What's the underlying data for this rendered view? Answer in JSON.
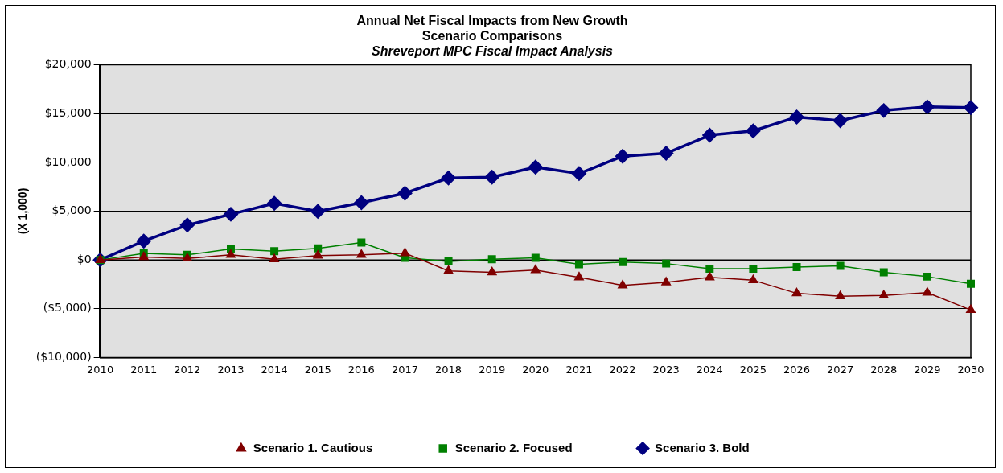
{
  "chart_data": {
    "type": "line",
    "title": [
      "Annual Net Fiscal Impacts from New Growth",
      "Scenario Comparisons"
    ],
    "subtitle": "Shreveport MPC Fiscal Impact Analysis",
    "ylabel": "(X 1,000)",
    "categories": [
      "2010",
      "2011",
      "2012",
      "2013",
      "2014",
      "2015",
      "2016",
      "2017",
      "2018",
      "2019",
      "2020",
      "2021",
      "2022",
      "2023",
      "2024",
      "2025",
      "2026",
      "2027",
      "2028",
      "2029",
      "2030"
    ],
    "series": [
      {
        "name": "Scenario 1. Cautious",
        "color": "#800000",
        "marker": "triangle",
        "values": [
          0,
          300,
          150,
          520,
          70,
          450,
          520,
          700,
          -1120,
          -1260,
          -1040,
          -1780,
          -2600,
          -2300,
          -1780,
          -2080,
          -3420,
          -3720,
          -3640,
          -3350,
          -5130
        ]
      },
      {
        "name": "Scenario 2. Focused",
        "color": "#008000",
        "marker": "square",
        "values": [
          0,
          670,
          520,
          1120,
          890,
          1190,
          1780,
          220,
          -150,
          70,
          220,
          -450,
          -220,
          -370,
          -890,
          -890,
          -740,
          -600,
          -1260,
          -1710,
          -2450
        ]
      },
      {
        "name": "Scenario 3. Bold",
        "color": "#000080",
        "marker": "diamond",
        "values": [
          0,
          1930,
          3570,
          4680,
          5800,
          4980,
          5870,
          6840,
          8400,
          8480,
          9520,
          8850,
          10630,
          10930,
          12790,
          13230,
          14650,
          14280,
          15320,
          15690,
          15610
        ]
      }
    ],
    "ylim": [
      -10000,
      20000
    ],
    "yticks": [
      {
        "value": -10000,
        "label": "($10,000)"
      },
      {
        "value": -5000,
        "label": "($5,000)"
      },
      {
        "value": 0,
        "label": "$0"
      },
      {
        "value": 5000,
        "label": "$5,000"
      },
      {
        "value": 10000,
        "label": "$10,000"
      },
      {
        "value": 15000,
        "label": "$15,000"
      },
      {
        "value": 20000,
        "label": "$20,000"
      }
    ],
    "grid": "y",
    "legend": "bottom",
    "line_style": "solid"
  }
}
